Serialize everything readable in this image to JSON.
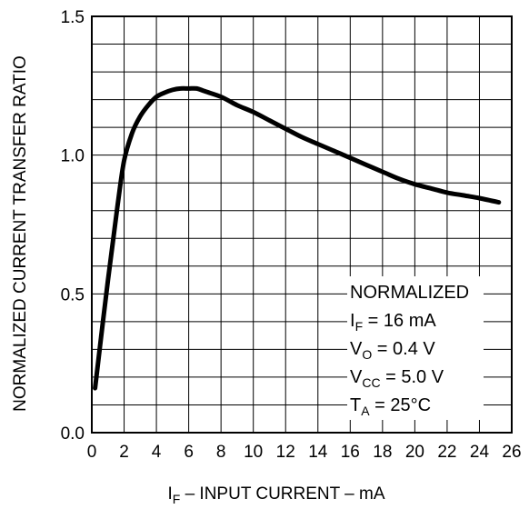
{
  "chart_data": {
    "type": "line",
    "xlabel": {
      "main": "I",
      "sub": "F",
      "rest": " – INPUT CURRENT – mA"
    },
    "ylabel": "NORMALIZED CURRENT TRANSFER RATIO",
    "xlim": [
      0,
      26
    ],
    "ylim": [
      0,
      1.5
    ],
    "xticks": [
      "0",
      "2",
      "4",
      "6",
      "8",
      "10",
      "12",
      "14",
      "16",
      "18",
      "20",
      "22",
      "24",
      "26"
    ],
    "xtick_values": [
      0,
      2,
      4,
      6,
      8,
      10,
      12,
      14,
      16,
      18,
      20,
      22,
      24,
      26
    ],
    "yticks": [
      "0.0",
      "0.5",
      "1.0",
      "1.5"
    ],
    "ytick_values": [
      0,
      0.5,
      1.0,
      1.5
    ],
    "grid": true,
    "series": [
      {
        "x": [
          0.2,
          1.0,
          1.6,
          2.0,
          2.5,
          3.0,
          3.5,
          4.0,
          4.5,
          5.0,
          5.5,
          6.0,
          6.5,
          7.0,
          8.0,
          9.0,
          10,
          11,
          12,
          13,
          14,
          15,
          16,
          17,
          18,
          19,
          20,
          21,
          22,
          23,
          24,
          25.2
        ],
        "y": [
          0.16,
          0.55,
          0.82,
          0.98,
          1.08,
          1.14,
          1.18,
          1.21,
          1.225,
          1.235,
          1.24,
          1.24,
          1.24,
          1.23,
          1.21,
          1.18,
          1.155,
          1.125,
          1.095,
          1.065,
          1.04,
          1.015,
          0.99,
          0.965,
          0.94,
          0.915,
          0.895,
          0.88,
          0.865,
          0.855,
          0.845,
          0.83
        ]
      }
    ],
    "annotation": {
      "lines": [
        {
          "main": "NORMALIZED",
          "sub": "",
          "rest": ""
        },
        {
          "main": "I",
          "sub": "F",
          "rest": " = 16 mA"
        },
        {
          "main": "V",
          "sub": "O",
          "rest": " = 0.4 V"
        },
        {
          "main": "V",
          "sub": "CC",
          "rest": " = 5.0 V"
        },
        {
          "main": "T",
          "sub": "A",
          "rest": " = 25°C"
        }
      ]
    }
  }
}
